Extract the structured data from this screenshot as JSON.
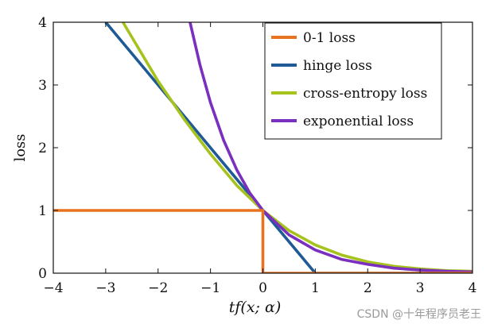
{
  "chart_data": {
    "type": "line",
    "title": "",
    "xlabel": "tf(x; α)",
    "ylabel": "loss",
    "xlim": [
      -4,
      4
    ],
    "ylim": [
      0,
      4
    ],
    "xticks": [
      "−4",
      "−3",
      "−2",
      "−1",
      "0",
      "1",
      "2",
      "3",
      "4"
    ],
    "yticks": [
      "0",
      "1",
      "2",
      "3",
      "4"
    ],
    "grid": false,
    "legend_position": "top-right",
    "series": [
      {
        "name": "0-1 loss",
        "color": "#e8731f",
        "x": [
          -4,
          0,
          0,
          1,
          4
        ],
        "y": [
          1,
          1,
          0,
          0,
          0
        ]
      },
      {
        "name": "hinge loss",
        "color": "#1f5a96",
        "x": [
          -3,
          -2,
          -1,
          0,
          1,
          2,
          4
        ],
        "y": [
          4,
          3,
          2,
          1,
          0,
          0,
          0
        ]
      },
      {
        "name": "cross-entropy loss",
        "color": "#a6c21c",
        "x": [
          -2.67,
          -2,
          -1.5,
          -1,
          -0.5,
          0,
          0.5,
          1,
          1.5,
          2,
          2.5,
          3,
          3.5,
          4
        ],
        "y": [
          4.0,
          3.06,
          2.45,
          1.9,
          1.4,
          1.0,
          0.68,
          0.45,
          0.29,
          0.18,
          0.11,
          0.07,
          0.04,
          0.03
        ]
      },
      {
        "name": "exponential loss",
        "color": "#7b2fbf",
        "x": [
          -1.39,
          -1.2,
          -1,
          -0.75,
          -0.5,
          -0.25,
          0,
          0.5,
          1,
          1.5,
          2,
          2.5,
          3,
          3.5,
          4
        ],
        "y": [
          4.0,
          3.32,
          2.72,
          2.12,
          1.65,
          1.28,
          1.0,
          0.61,
          0.37,
          0.22,
          0.14,
          0.08,
          0.05,
          0.03,
          0.02
        ]
      }
    ]
  },
  "watermark": "CSDN @十年程序员老王"
}
